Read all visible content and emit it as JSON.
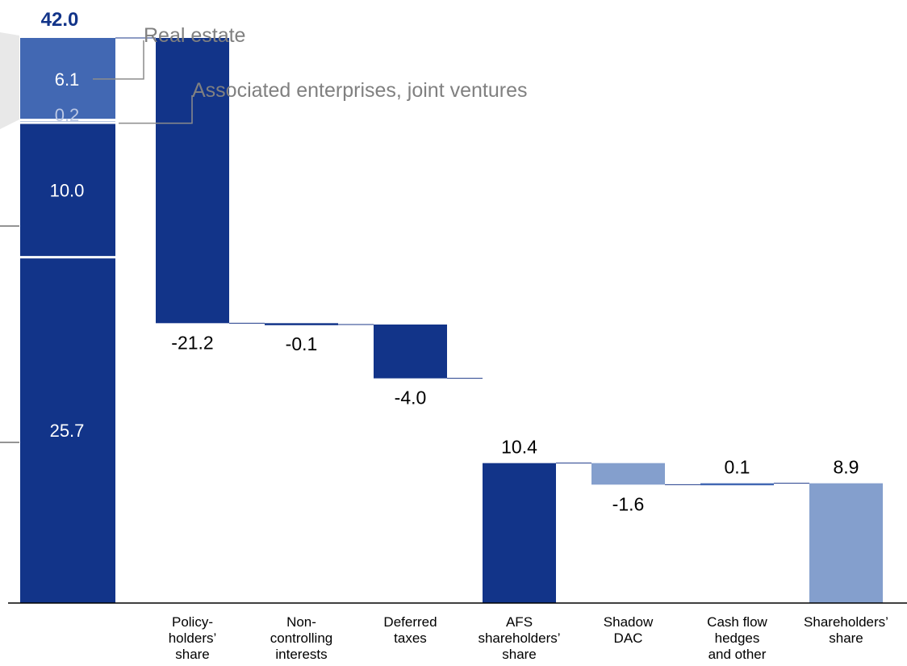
{
  "colors": {
    "dark": "#123489",
    "medium": "#4268B3",
    "light": "#849FCD",
    "callout_text": "#808080",
    "callout_line": "#8C8C8C",
    "segment_divider": "#ffffff"
  },
  "chart_data": {
    "type": "bar",
    "subtype": "waterfall",
    "first_bar": {
      "total_label": "42.0",
      "total": 42.0,
      "segments": [
        {
          "label": "25.7",
          "value": 25.7,
          "color": "dark"
        },
        {
          "label": "10.0",
          "value": 10.0,
          "color": "dark"
        },
        {
          "label": "0.2",
          "value": 0.2,
          "color": "medium"
        },
        {
          "label": "6.1",
          "value": 6.1,
          "color": "medium"
        }
      ],
      "callouts": [
        {
          "text": "Real estate",
          "segment": 3
        },
        {
          "text": "Associated enterprises, joint ventures",
          "segment": 2
        }
      ]
    },
    "steps": [
      {
        "category": [
          "Policy-",
          "holders’",
          "share"
        ],
        "label": "-21.2",
        "value": -21.2,
        "kind": "delta",
        "color": "dark"
      },
      {
        "category": [
          "Non-",
          "controlling",
          "interests"
        ],
        "label": "-0.1",
        "value": -0.1,
        "kind": "delta",
        "color": "dark"
      },
      {
        "category": [
          "Deferred",
          "taxes"
        ],
        "label": "-4.0",
        "value": -4.0,
        "kind": "delta",
        "color": "dark"
      },
      {
        "category": [
          "AFS",
          "shareholders’",
          "share"
        ],
        "label": "10.4",
        "value": 10.4,
        "kind": "total",
        "color": "dark"
      },
      {
        "category": [
          "Shadow",
          "DAC"
        ],
        "label": "-1.6",
        "value": -1.6,
        "kind": "delta",
        "color": "light"
      },
      {
        "category": [
          "Cash flow",
          "hedges",
          "and other"
        ],
        "label": "0.1",
        "value": 0.1,
        "kind": "delta",
        "color": "medium"
      },
      {
        "category": [
          "Shareholders’",
          "share"
        ],
        "label": "8.9",
        "value": 8.9,
        "kind": "total",
        "color": "light"
      }
    ],
    "ylim": [
      0,
      42.0
    ],
    "grid": false,
    "legend": "none"
  }
}
